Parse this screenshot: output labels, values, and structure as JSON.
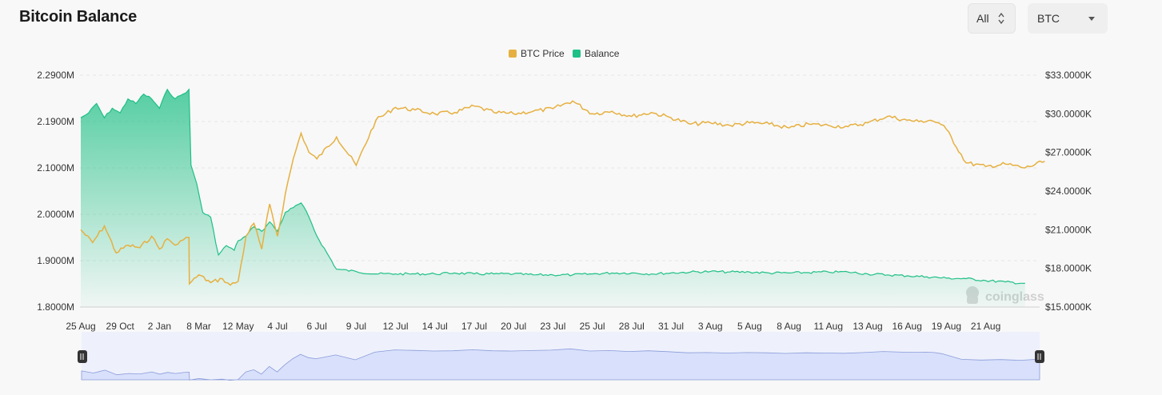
{
  "header": {
    "title": "Bitcoin Balance",
    "range_select": {
      "value": "All"
    },
    "coin_select": {
      "value": "BTC"
    }
  },
  "watermark": {
    "text": "coinglass",
    "icon": "coinglass-logo-icon"
  },
  "colors": {
    "price": "#e6b040",
    "balance": "#1fc086",
    "navigator_fill": "#d8e0fb",
    "navigator_line": "#8a9bd9"
  },
  "chart_data": {
    "type": "line",
    "title": "Bitcoin Balance",
    "legend": {
      "placement": "top-center",
      "entries": [
        "BTC Price",
        "Balance"
      ]
    },
    "x_ticks": [
      "25 Aug",
      "29 Oct",
      "2 Jan",
      "8 Mar",
      "12 May",
      "4 Jul",
      "6 Jul",
      "9 Jul",
      "12 Jul",
      "14 Jul",
      "17 Jul",
      "20 Jul",
      "23 Jul",
      "25 Jul",
      "28 Jul",
      "31 Jul",
      "3 Aug",
      "5 Aug",
      "8 Aug",
      "11 Aug",
      "13 Aug",
      "16 Aug",
      "19 Aug",
      "21 Aug"
    ],
    "y_left": {
      "ticks": [
        "2.2900M",
        "2.1900M",
        "2.1000M",
        "2.0000M",
        "1.9000M",
        "1.8000M"
      ],
      "min": 1.8,
      "max": 2.29
    },
    "y_right": {
      "ticks": [
        "$33.0000K",
        "$30.0000K",
        "$27.0000K",
        "$24.0000K",
        "$21.0000K",
        "$18.0000K",
        "$15.0000K"
      ],
      "min": 15,
      "max": 33
    },
    "grid": true,
    "series": [
      {
        "name": "BTC Price",
        "axis": "right",
        "x": [
          0,
          0.3,
          0.6,
          0.9,
          1.2,
          1.5,
          1.8,
          2.0,
          2.2,
          2.4,
          2.6,
          2.75,
          2.76,
          3.0,
          3.3,
          3.6,
          3.8,
          4.0,
          4.2,
          4.4,
          4.6,
          4.8,
          5.0,
          5.2,
          5.4,
          5.6,
          5.8,
          6,
          6.5,
          7,
          7.5,
          8,
          8.5,
          9,
          9.5,
          10,
          10.5,
          11,
          11.5,
          12,
          12.5,
          13,
          13.5,
          14,
          14.5,
          15,
          15.5,
          16,
          16.5,
          17,
          17.5,
          18,
          18.5,
          19,
          19.5,
          20,
          20.5,
          21,
          21.3,
          21.6,
          21.8,
          22,
          22.5,
          23,
          23.5,
          24,
          24.5
        ],
        "values": [
          21.0,
          20.0,
          21.3,
          19.2,
          19.8,
          19.6,
          20.5,
          19.5,
          20.3,
          19.8,
          20.2,
          20.4,
          16.8,
          17.5,
          16.9,
          17.2,
          16.7,
          17.0,
          20.5,
          21.5,
          19.5,
          23.0,
          20.5,
          23.8,
          26.5,
          28.5,
          27.0,
          26.5,
          28.2,
          26.0,
          29.5,
          30.5,
          30.3,
          30.0,
          30.1,
          30.6,
          30.1,
          30.0,
          30.2,
          30.4,
          31.0,
          30.0,
          30.2,
          29.8,
          30.1,
          29.7,
          29.2,
          29.3,
          29.1,
          29.3,
          29.2,
          28.9,
          29.2,
          29.1,
          29.0,
          29.3,
          29.8,
          29.5,
          29.4,
          29.5,
          29.3,
          28.8,
          26.2,
          25.9,
          26.1,
          25.8,
          26.3
        ]
      },
      {
        "name": "Balance",
        "axis": "left",
        "x": [
          0,
          0.2,
          0.4,
          0.6,
          0.8,
          1.0,
          1.2,
          1.4,
          1.6,
          1.8,
          2.0,
          2.2,
          2.4,
          2.6,
          2.75,
          2.8,
          2.95,
          3.1,
          3.3,
          3.5,
          3.7,
          3.9,
          4.0,
          4.2,
          4.4,
          4.6,
          4.8,
          5.0,
          5.2,
          5.4,
          5.6,
          5.8,
          6,
          6.5,
          7,
          7.5,
          8,
          8.5,
          9,
          9.5,
          10,
          10.5,
          11,
          11.5,
          12,
          12.5,
          13,
          13.5,
          14,
          14.5,
          15,
          15.5,
          16,
          16.5,
          17,
          17.5,
          18,
          18.5,
          19,
          19.5,
          20,
          20.5,
          21,
          21.5,
          22,
          22.5,
          23,
          23.5,
          24
        ],
        "values": [
          2.2,
          2.21,
          2.23,
          2.2,
          2.22,
          2.21,
          2.24,
          2.23,
          2.25,
          2.24,
          2.22,
          2.26,
          2.24,
          2.25,
          2.26,
          2.1,
          2.06,
          2.0,
          1.99,
          1.91,
          1.93,
          1.92,
          1.94,
          1.95,
          1.97,
          1.96,
          1.98,
          1.96,
          2.0,
          2.01,
          2.02,
          1.99,
          1.95,
          1.88,
          1.875,
          1.87,
          1.87,
          1.87,
          1.87,
          1.872,
          1.87,
          1.87,
          1.87,
          1.868,
          1.868,
          1.868,
          1.87,
          1.872,
          1.872,
          1.87,
          1.872,
          1.874,
          1.875,
          1.874,
          1.874,
          1.872,
          1.872,
          1.873,
          1.874,
          1.874,
          1.87,
          1.868,
          1.866,
          1.864,
          1.861,
          1.86,
          1.856,
          1.853,
          1.85
        ]
      }
    ]
  }
}
